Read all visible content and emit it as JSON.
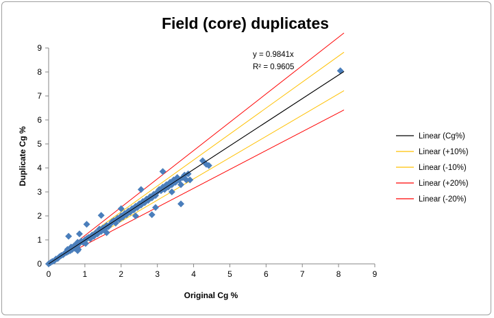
{
  "chart_data": {
    "type": "scatter",
    "title": "Field (core) duplicates",
    "xlabel": "Original Cg %",
    "ylabel": "Duplicate Cg %",
    "xlim": [
      0,
      9
    ],
    "ylim": [
      0,
      9
    ],
    "xticks": [
      "0",
      "1",
      "2",
      "3",
      "4",
      "5",
      "6",
      "7",
      "8",
      "9"
    ],
    "yticks": [
      "0",
      "1",
      "2",
      "3",
      "4",
      "5",
      "6",
      "7",
      "8",
      "9"
    ],
    "grid": false,
    "legend_position": "right",
    "equation": "y = 0.9841x",
    "r_squared": "R² = 0.9605",
    "points": {
      "color": "#4a7ebb",
      "marker": "diamond",
      "x": [
        0,
        0.05,
        0.1,
        0.15,
        0.2,
        0.25,
        0.3,
        0.35,
        0.4,
        0.45,
        0.5,
        0.52,
        0.55,
        0.6,
        0.62,
        0.65,
        0.7,
        0.72,
        0.75,
        0.78,
        0.8,
        0.82,
        0.85,
        0.9,
        0.95,
        1.0,
        1.02,
        1.05,
        1.1,
        1.15,
        1.2,
        1.25,
        1.3,
        1.35,
        1.4,
        1.45,
        1.5,
        1.55,
        1.6,
        1.65,
        1.7,
        1.75,
        1.8,
        1.85,
        1.9,
        1.95,
        2.0,
        2.05,
        2.1,
        2.15,
        2.2,
        2.25,
        2.3,
        2.35,
        2.4,
        2.45,
        2.5,
        2.55,
        2.6,
        2.65,
        2.7,
        2.75,
        2.8,
        2.85,
        2.9,
        2.95,
        3.0,
        3.05,
        3.1,
        3.15,
        3.2,
        3.25,
        3.3,
        3.35,
        3.4,
        3.45,
        3.5,
        3.55,
        3.6,
        3.65,
        3.7,
        3.75,
        3.8,
        3.85,
        4.25,
        4.35,
        4.42,
        0.55,
        0.85,
        0.8,
        1.05,
        1.45,
        1.6,
        2.0,
        2.55,
        2.85,
        3.15,
        3.65,
        3.9,
        2.4,
        2.95,
        3.4,
        8.05
      ],
      "y": [
        0,
        0.05,
        0.1,
        0.12,
        0.2,
        0.22,
        0.3,
        0.35,
        0.38,
        0.45,
        0.48,
        0.6,
        0.52,
        0.55,
        0.7,
        0.6,
        0.75,
        0.65,
        0.8,
        0.7,
        0.9,
        0.6,
        0.85,
        0.95,
        0.9,
        1.0,
        0.85,
        1.05,
        1.1,
        1.05,
        1.2,
        1.15,
        1.3,
        1.25,
        1.45,
        1.35,
        1.5,
        1.45,
        1.6,
        1.55,
        1.65,
        1.75,
        1.8,
        1.7,
        1.9,
        1.85,
        2.0,
        1.95,
        2.1,
        2.05,
        2.2,
        2.15,
        2.3,
        2.25,
        2.4,
        2.35,
        2.5,
        2.45,
        2.6,
        2.55,
        2.7,
        2.65,
        2.8,
        2.75,
        2.9,
        2.85,
        3.0,
        3.1,
        3.05,
        3.2,
        3.1,
        3.3,
        3.2,
        3.4,
        3.3,
        3.5,
        3.4,
        3.6,
        3.5,
        3.3,
        3.6,
        3.7,
        3.5,
        3.75,
        4.3,
        4.15,
        4.1,
        1.15,
        1.25,
        0.55,
        1.65,
        2.02,
        1.3,
        2.3,
        3.1,
        2.05,
        3.85,
        2.5,
        3.5,
        2.0,
        2.35,
        3.0,
        8.05
      ]
    },
    "series": [
      {
        "name": "Linear (Cg%)",
        "slope": 0.9841,
        "color": "#000000"
      },
      {
        "name": "Linear (+10%)",
        "slope": 1.0825,
        "color": "#ffc000"
      },
      {
        "name": "Linear (-10%)",
        "slope": 0.8857,
        "color": "#ffc000"
      },
      {
        "name": "Linear (+20%)",
        "slope": 1.1809,
        "color": "#ff0000"
      },
      {
        "name": "Linear (-20%)",
        "slope": 0.7873,
        "color": "#ff0000"
      }
    ]
  }
}
